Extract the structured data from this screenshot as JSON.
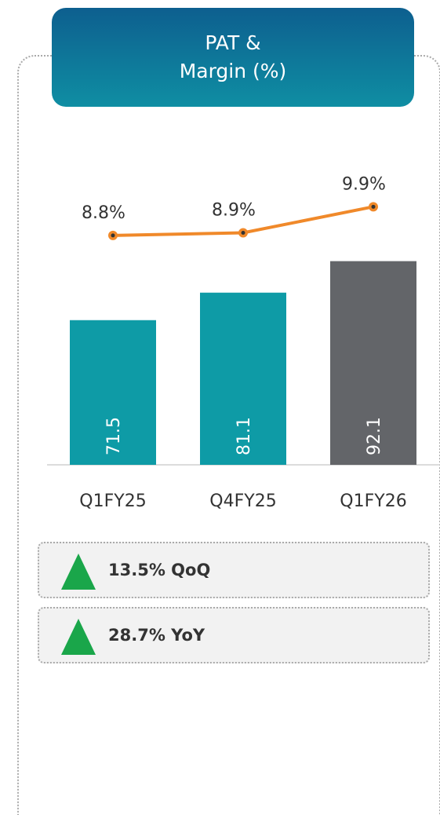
{
  "chart_data": {
    "type": "bar-line",
    "title": "PAT & Margin (%)",
    "categories": [
      "Q1FY25",
      "Q4FY25",
      "Q1FY26"
    ],
    "series": [
      {
        "type": "bar",
        "colors": [
          "#0e9ba6",
          "#0e9ba6",
          "#636569"
        ],
        "values": [
          71.5,
          81.1,
          92.1
        ]
      },
      {
        "type": "line",
        "axis": "y2",
        "color": "#f0892a",
        "values": [
          8.8,
          8.9,
          9.9
        ],
        "value_labels": [
          "8.8%",
          "8.9%",
          "9.9%"
        ]
      }
    ],
    "ylim": [
      21,
      112
    ],
    "y2lim": [
      0,
      10
    ],
    "annotations": [
      "13.5% QoQ",
      "28.7% YoY"
    ]
  }
}
